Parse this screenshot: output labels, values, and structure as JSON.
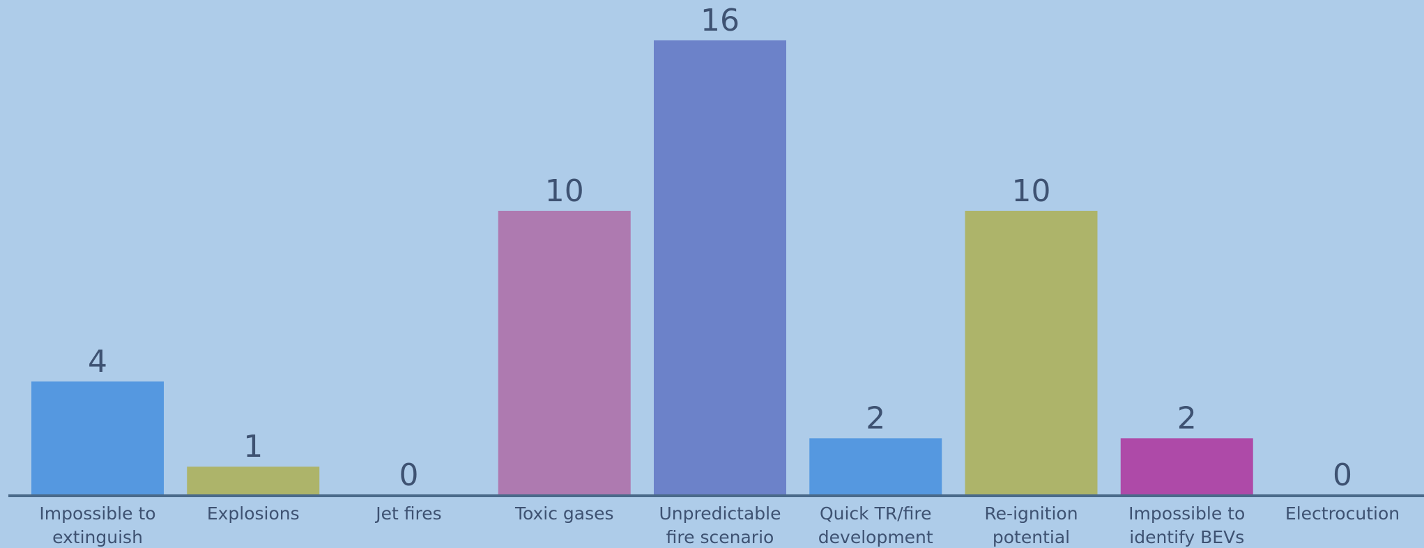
{
  "chart_data": {
    "type": "bar",
    "categories": [
      [
        "Impossible to",
        "extinguish"
      ],
      [
        "Explosions"
      ],
      [
        "Jet fires"
      ],
      [
        "Toxic gases"
      ],
      [
        "Unpredictable",
        "fire scenario"
      ],
      [
        "Quick TR/fire",
        "development"
      ],
      [
        "Re-ignition",
        "potential"
      ],
      [
        "Impossible to",
        "identify BEVs"
      ],
      [
        "Electrocution"
      ]
    ],
    "values": [
      4,
      1,
      0,
      10,
      16,
      2,
      10,
      2,
      0
    ],
    "value_labels": [
      "4",
      "1",
      "0",
      "10",
      "16",
      "2",
      "10",
      "2",
      "0"
    ],
    "colors": [
      "#5598e0",
      "#adb46a",
      "#adb46a",
      "#ae7ab0",
      "#6c82c9",
      "#5598e0",
      "#adb46a",
      "#ae4aa8",
      "#adb46a"
    ],
    "ylim": [
      0,
      16
    ],
    "grid": false,
    "legend": "none",
    "background": "#aecce9",
    "axis_color": "#4a6a8a",
    "text_color": "#3e5272"
  }
}
